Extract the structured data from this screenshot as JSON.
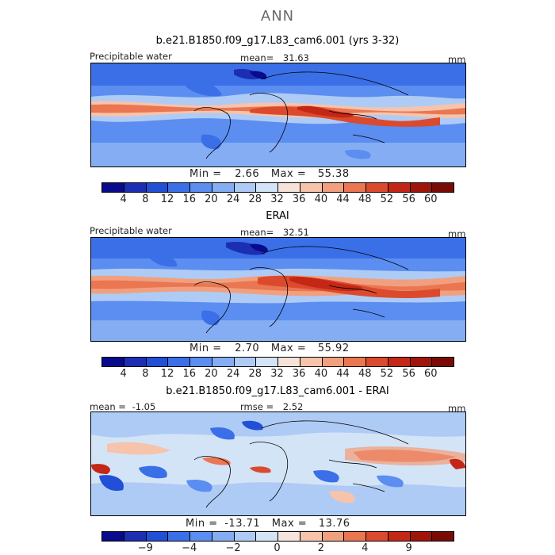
{
  "figure_title": "ANN",
  "panels": [
    {
      "title": "b.e21.B1850.f09_g17.L83_cam6.001 (yrs 3-32)",
      "variable": "Precipitable water",
      "units": "mm",
      "mean_label": "mean=",
      "mean_value": "31.63",
      "min_label": "Min =",
      "min_value": "2.66",
      "max_label": "Max =",
      "max_value": "55.38",
      "colorbar_labels": [
        "4",
        "8",
        "12",
        "16",
        "20",
        "24",
        "28",
        "32",
        "36",
        "40",
        "44",
        "48",
        "52",
        "56",
        "60"
      ],
      "colorbar_colors": [
        "#0a0a8c",
        "#1c2fb4",
        "#2150d6",
        "#3b6fe8",
        "#5b8ef0",
        "#84adf4",
        "#aecbf6",
        "#d4e4f7",
        "#f5e2d8",
        "#f6c3ab",
        "#f1a07f",
        "#ea7652",
        "#dc4a2e",
        "#c42716",
        "#a0140c",
        "#7a0a06"
      ]
    },
    {
      "title": "ERAI",
      "variable": "Precipitable water",
      "units": "mm",
      "mean_label": "mean=",
      "mean_value": "32.51",
      "min_label": "Min =",
      "min_value": "2.70",
      "max_label": "Max =",
      "max_value": "55.92",
      "colorbar_labels": [
        "4",
        "8",
        "12",
        "16",
        "20",
        "24",
        "28",
        "32",
        "36",
        "40",
        "44",
        "48",
        "52",
        "56",
        "60"
      ],
      "colorbar_colors": [
        "#0a0a8c",
        "#1c2fb4",
        "#2150d6",
        "#3b6fe8",
        "#5b8ef0",
        "#84adf4",
        "#aecbf6",
        "#d4e4f7",
        "#f5e2d8",
        "#f6c3ab",
        "#f1a07f",
        "#ea7652",
        "#dc4a2e",
        "#c42716",
        "#a0140c",
        "#7a0a06"
      ]
    },
    {
      "title": "b.e21.B1850.f09_g17.L83_cam6.001 - ERAI",
      "mean_label": "mean =",
      "mean_value": "-1.05",
      "rmse_label": "rmse =",
      "rmse_value": "2.52",
      "units": "mm",
      "min_label": "Min =",
      "min_value": "-13.71",
      "max_label": "Max =",
      "max_value": "13.76",
      "colorbar_labels": [
        "-9",
        "-4",
        "-2",
        "0",
        "2",
        "4",
        "9"
      ],
      "colorbar_colors": [
        "#0a0a8c",
        "#1c2fb4",
        "#2150d6",
        "#3b6fe8",
        "#5b8ef0",
        "#84adf4",
        "#aecbf6",
        "#d4e4f7",
        "#f6e4dc",
        "#f6c3ab",
        "#f1a07f",
        "#ea7652",
        "#dc4a2e",
        "#c42716",
        "#a0140c",
        "#7a0a06"
      ]
    }
  ]
}
